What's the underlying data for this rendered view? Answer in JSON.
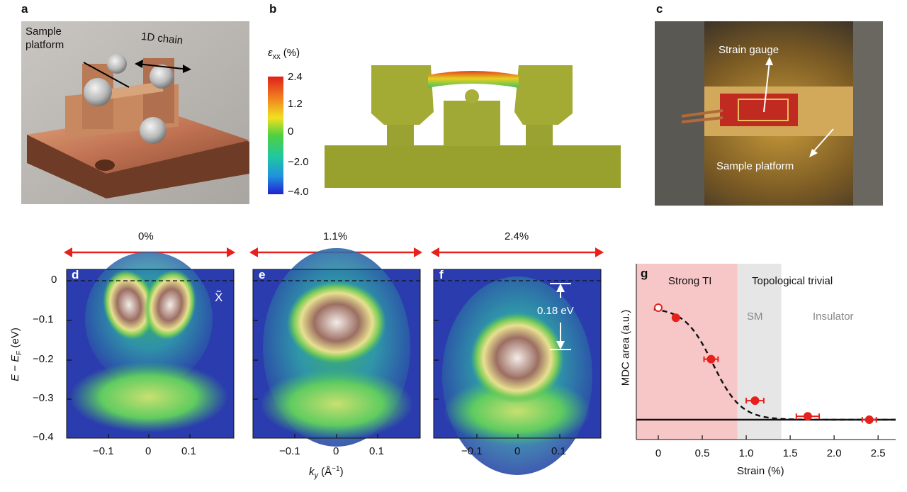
{
  "panels": {
    "a": {
      "letter": "a",
      "label_platform_line1": "Sample",
      "label_platform_line2": "platform",
      "label_chain": "1D chain"
    },
    "b": {
      "letter": "b",
      "colorbar_symbol": "ε",
      "colorbar_sub": "xx",
      "colorbar_unit": " (%)",
      "colorbar_ticks": [
        "2.4",
        "1.2",
        "0",
        "−2.0",
        "−4.0"
      ]
    },
    "c": {
      "letter": "c",
      "label_gauge": "Strain gauge",
      "label_platform": "Sample platform"
    },
    "arpes": {
      "strain_labels": [
        "0%",
        "1.1%",
        "2.4%"
      ],
      "letters": [
        "d",
        "e",
        "f"
      ],
      "x_ticks": [
        "−0.1",
        "0",
        "0.1"
      ],
      "y_ticks": [
        "0",
        "−0.1",
        "−0.2",
        "−0.3",
        "−0.4"
      ],
      "ylabel_E": "E",
      "ylabel_minus": " − ",
      "ylabel_EF": "E",
      "ylabel_sub": "F",
      "ylabel_unit": " (eV)",
      "xlabel_k": "k",
      "xlabel_sub": "y",
      "xlabel_unit": " (Å",
      "xlabel_exp": "−1",
      "xlabel_close": ")",
      "xtilde": "X̃",
      "gap_label": "0.18 eV"
    },
    "g": {
      "letter": "g",
      "region_strong": "Strong TI",
      "region_trivial": "Topological trivial",
      "region_sm": "SM",
      "region_insulator": "Insulator",
      "ylabel": "MDC area (a.u.)",
      "xlabel": "Strain (%)",
      "x_ticks": [
        "0",
        "0.5",
        "1.0",
        "1.5",
        "2.0",
        "2.5"
      ]
    }
  },
  "chart_data": {
    "type": "scatter",
    "xlabel": "Strain (%)",
    "ylabel": "MDC area (a.u.)",
    "xlim": [
      -0.25,
      2.7
    ],
    "x_ticks": [
      0,
      0.5,
      1.0,
      1.5,
      2.0,
      2.5
    ],
    "regions": [
      {
        "name": "Strong TI",
        "from": -0.25,
        "to": 0.9,
        "color": "#f7c6c6"
      },
      {
        "name": "SM",
        "from": 0.9,
        "to": 1.4,
        "color": "#e6e6e6"
      },
      {
        "name": "Insulator",
        "from": 1.4,
        "to": 2.7,
        "color": "#ffffff"
      }
    ],
    "points": [
      {
        "x": 0.0,
        "y": 1.0,
        "xerr": 0.0,
        "open": true
      },
      {
        "x": 0.2,
        "y": 0.91,
        "xerr": 0.0
      },
      {
        "x": 0.6,
        "y": 0.54,
        "xerr": 0.08
      },
      {
        "x": 1.1,
        "y": 0.17,
        "xerr": 0.1
      },
      {
        "x": 1.7,
        "y": 0.03,
        "xerr": 0.13
      },
      {
        "x": 2.4,
        "y": 0.0,
        "xerr": 0.08
      }
    ],
    "fit": "dashed sigmoid",
    "baseline_y": 0
  }
}
